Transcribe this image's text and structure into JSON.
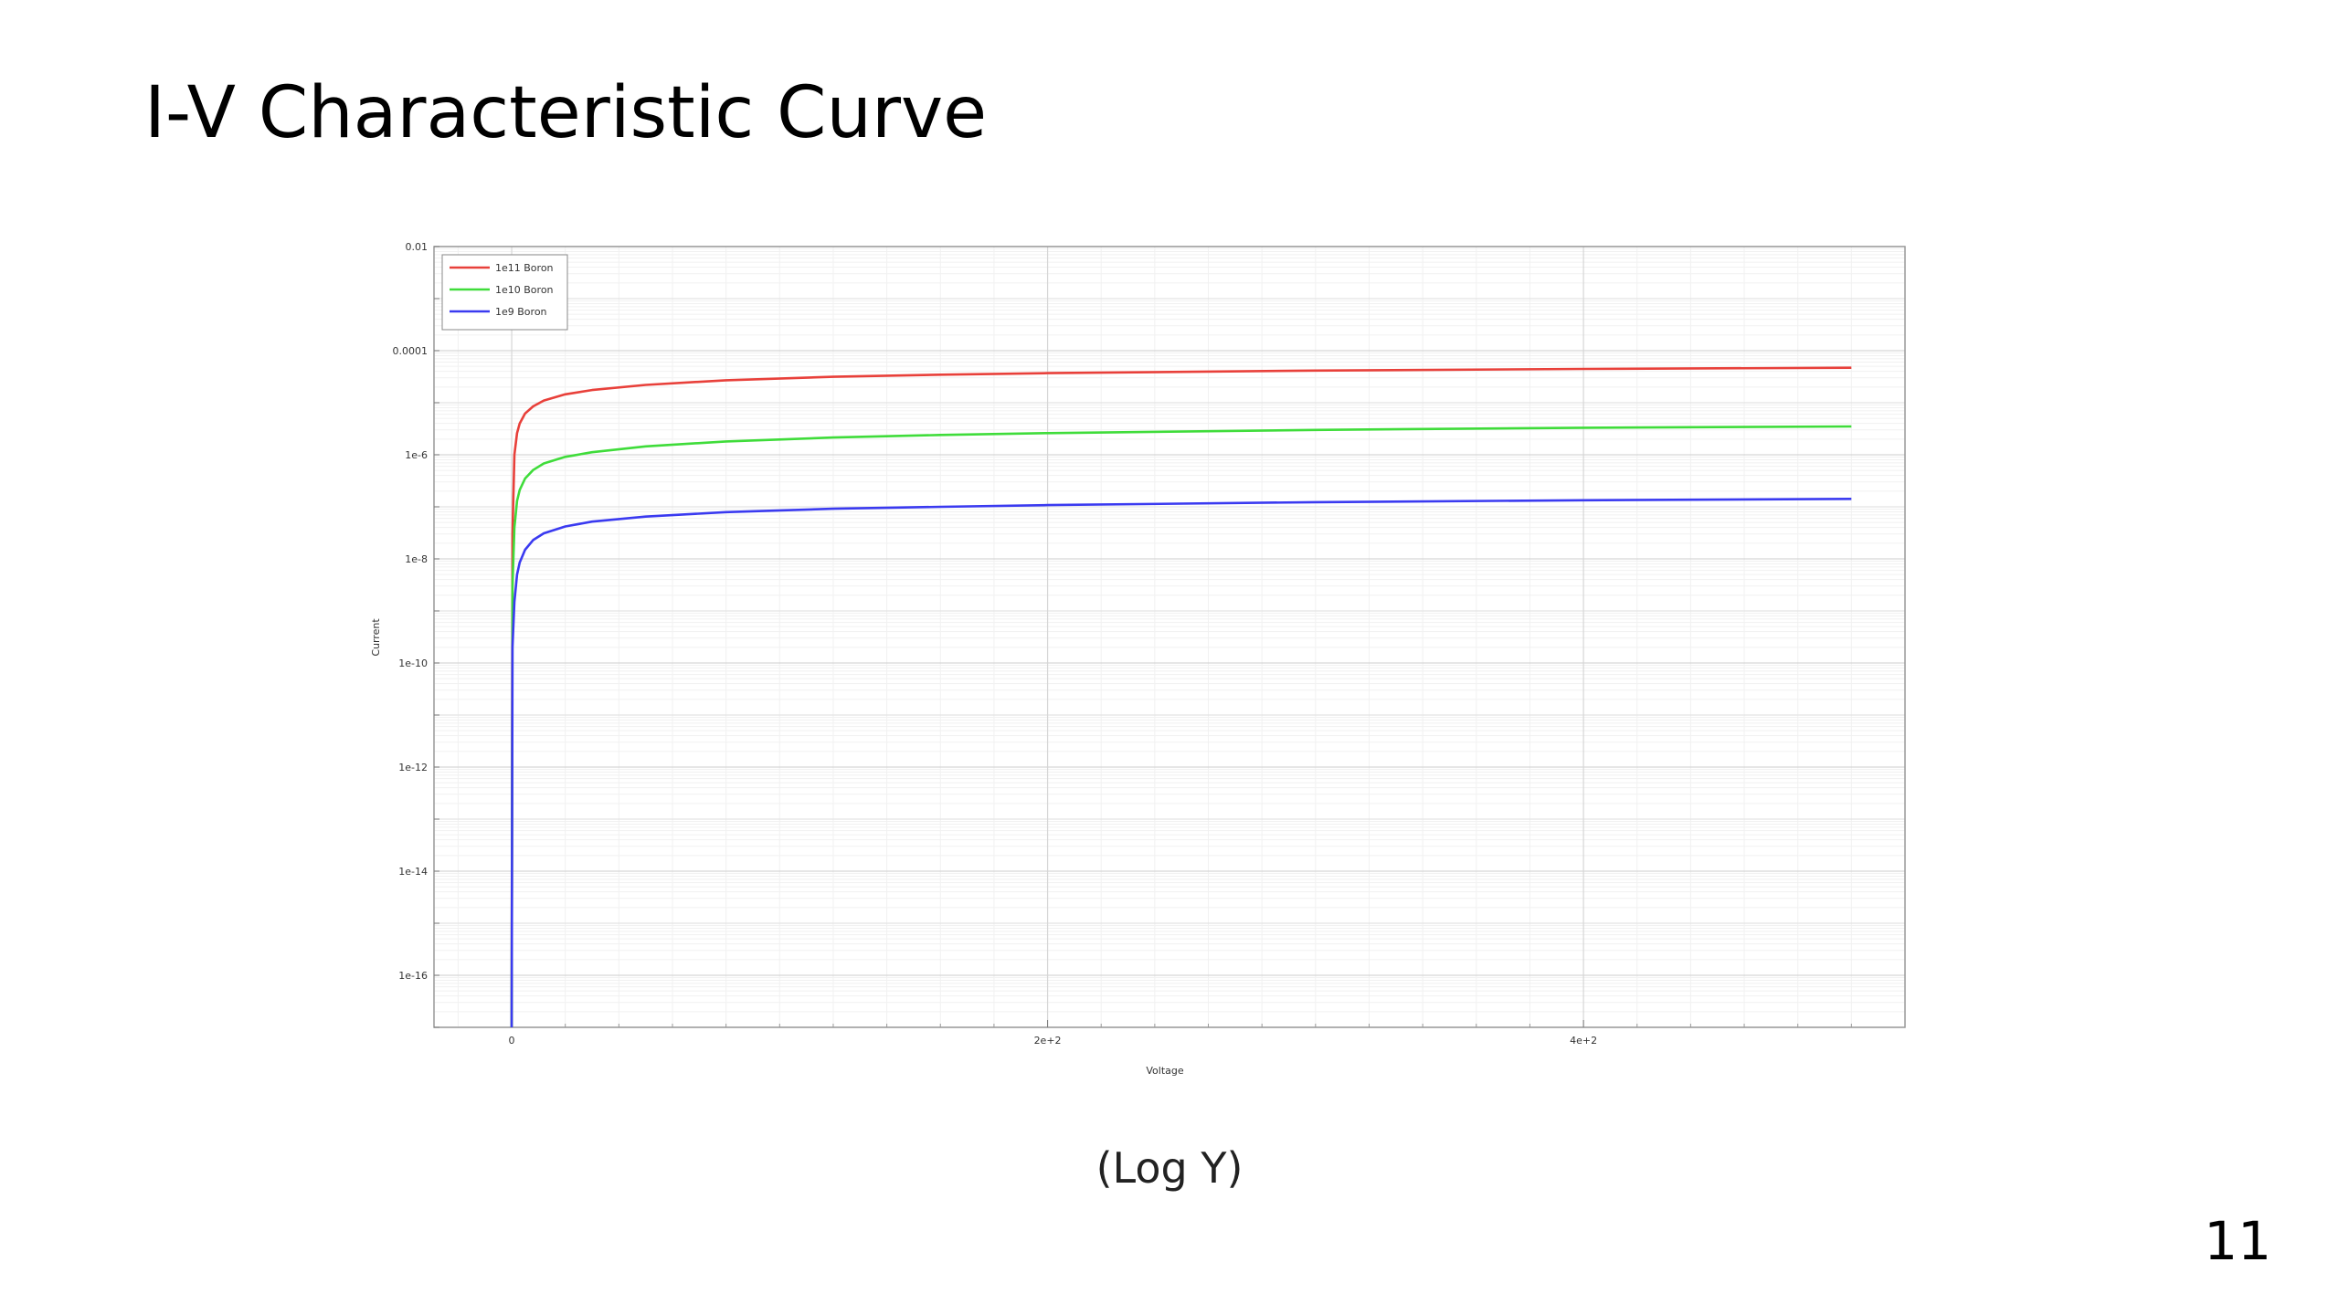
{
  "slide": {
    "title": "I-V Characteristic Curve",
    "caption": "(Log Y)",
    "page_number": "11"
  },
  "chart_data": {
    "type": "line",
    "title": "",
    "xlabel": "Voltage",
    "ylabel": "Current",
    "y_scale": "log",
    "xlim": [
      -29,
      520
    ],
    "ylim": [
      1e-17,
      0.01
    ],
    "x_ticks": [
      {
        "value": 0,
        "label": "0"
      },
      {
        "value": 200,
        "label": "2e+2"
      },
      {
        "value": 400,
        "label": "4e+2"
      }
    ],
    "y_ticks": [
      {
        "value": 0.01,
        "label": "0.01"
      },
      {
        "value": 0.0001,
        "label": "0.0001"
      },
      {
        "value": 1e-06,
        "label": "1e-6"
      },
      {
        "value": 1e-08,
        "label": "1e-8"
      },
      {
        "value": 1e-10,
        "label": "1e-10"
      },
      {
        "value": 1e-12,
        "label": "1e-12"
      },
      {
        "value": 1e-14,
        "label": "1e-14"
      },
      {
        "value": 1e-16,
        "label": "1e-16"
      }
    ],
    "grid": true,
    "legend_position": "top-left",
    "series": [
      {
        "name": "1e11 Boron",
        "color": "#e8403a",
        "x": [
          0,
          0.3,
          1,
          2,
          3,
          5,
          8,
          12,
          20,
          30,
          50,
          80,
          120,
          160,
          200,
          300,
          400,
          500
        ],
        "y": [
          1e-17,
          3e-08,
          1e-06,
          2.6e-06,
          4e-06,
          6.2e-06,
          8.5e-06,
          1.1e-05,
          1.45e-05,
          1.75e-05,
          2.2e-05,
          2.7e-05,
          3.15e-05,
          3.45e-05,
          3.7e-05,
          4.15e-05,
          4.45e-05,
          4.7e-05
        ]
      },
      {
        "name": "1e10 Boron",
        "color": "#3fdc3a",
        "x": [
          0,
          0.3,
          1,
          2,
          3,
          5,
          8,
          12,
          20,
          30,
          50,
          80,
          120,
          160,
          200,
          300,
          400,
          500
        ],
        "y": [
          1e-17,
          3e-09,
          4e-08,
          1.3e-07,
          2.1e-07,
          3.5e-07,
          5.1e-07,
          6.8e-07,
          9.1e-07,
          1.12e-06,
          1.45e-06,
          1.8e-06,
          2.15e-06,
          2.4e-06,
          2.6e-06,
          3e-06,
          3.3e-06,
          3.5e-06
        ]
      },
      {
        "name": "1e9 Boron",
        "color": "#3a3af0",
        "x": [
          0,
          0.3,
          1,
          2,
          3,
          5,
          8,
          12,
          20,
          30,
          50,
          80,
          120,
          160,
          200,
          300,
          400,
          500
        ],
        "y": [
          1e-17,
          2e-10,
          1.5e-09,
          5e-09,
          8.5e-09,
          1.5e-08,
          2.3e-08,
          3.1e-08,
          4.2e-08,
          5.2e-08,
          6.5e-08,
          7.9e-08,
          9.2e-08,
          1e-07,
          1.08e-07,
          1.23e-07,
          1.34e-07,
          1.42e-07
        ]
      }
    ]
  }
}
